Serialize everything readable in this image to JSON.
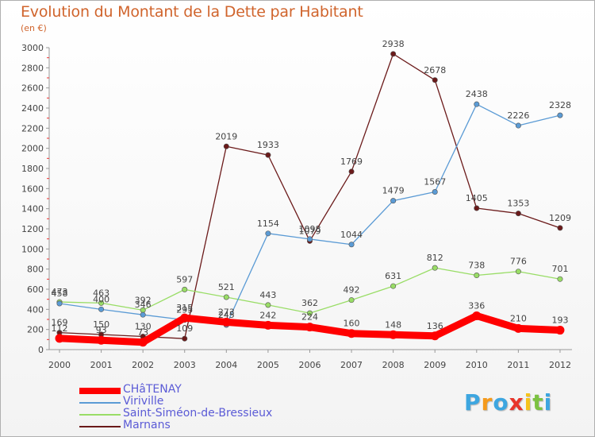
{
  "page": {
    "title": "Evolution du Montant de la Dette par Habitant",
    "subtitle": "(en €)"
  },
  "chart_data": {
    "type": "line",
    "x": [
      "2000",
      "2001",
      "2002",
      "2003",
      "2004",
      "2005",
      "2006",
      "2007",
      "2008",
      "2009",
      "2010",
      "2011",
      "2012"
    ],
    "ylim": [
      0,
      3000
    ],
    "yticks": [
      0,
      200,
      400,
      600,
      800,
      1000,
      1200,
      1400,
      1600,
      1800,
      2000,
      2200,
      2400,
      2600,
      2800,
      3000
    ],
    "grid": false,
    "legend_position": "bottom-left",
    "series": [
      {
        "name": "CHâTENAY",
        "color": "#ff0000",
        "values": [
          112,
          93,
          73,
          315,
          273,
          242,
          224,
          160,
          148,
          136,
          336,
          210,
          193
        ]
      },
      {
        "name": "Viriville",
        "color": "#5b9bd5",
        "values": [
          458,
          400,
          346,
          295,
          245,
          1154,
          1098,
          1044,
          1479,
          1567,
          2438,
          2226,
          2328
        ]
      },
      {
        "name": "Saint-Siméon-de-Bressieux",
        "color": "#99dd66",
        "values": [
          473,
          463,
          392,
          597,
          521,
          443,
          362,
          492,
          631,
          812,
          738,
          776,
          701
        ]
      },
      {
        "name": "Marnans",
        "color": "#6b1a1a",
        "values": [
          169,
          150,
          130,
          109,
          2019,
          1933,
          1079,
          1769,
          2938,
          2678,
          1405,
          1353,
          1209
        ]
      }
    ]
  },
  "logo": {
    "letters": [
      "P",
      "r",
      "o",
      "x",
      "i",
      "t",
      "i"
    ],
    "colors": [
      "#3da6e0",
      "#f59a1b",
      "#3da6e0",
      "#e8342a",
      "#f5c31b",
      "#7cc242",
      "#3da6e0"
    ]
  }
}
